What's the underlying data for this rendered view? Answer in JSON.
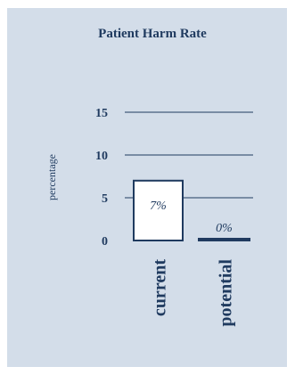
{
  "chart_data": {
    "type": "bar",
    "title": "Patient Harm Rate",
    "ylabel": "percentage",
    "xlabel": "",
    "categories": [
      "current",
      "potential"
    ],
    "values": [
      7,
      0
    ],
    "data_labels": [
      "7%",
      "0%"
    ],
    "ylim": [
      0,
      15
    ],
    "yticks": [
      0,
      5,
      10,
      15
    ],
    "grid": true
  },
  "colors": {
    "panel_background": "#d3dde9",
    "text": "#1f3a5f",
    "bar_fill": "#ffffff",
    "bar_outline": "#1f3a5f",
    "gridline": "#1f3a5f"
  }
}
